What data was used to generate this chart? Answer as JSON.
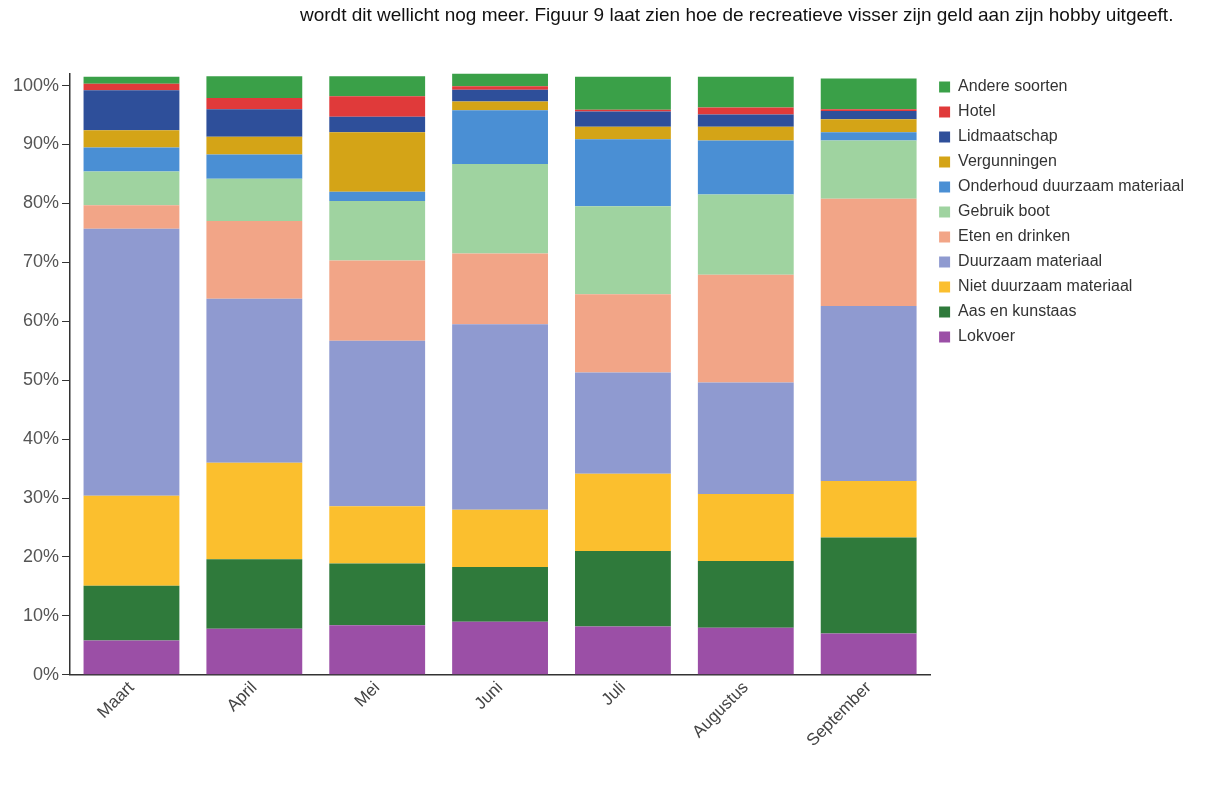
{
  "chart_data": {
    "type": "bar",
    "stacked": true,
    "categories": [
      "Maart",
      "April",
      "Mei",
      "Juni",
      "Juli",
      "Augustus",
      "September"
    ],
    "series": [
      {
        "name": "Lokvoer",
        "color": "#9b4fa6",
        "values": [
          5.8,
          7.8,
          8.4,
          9.0,
          8.2,
          8.0,
          7.0
        ]
      },
      {
        "name": "Aas en kunstaas",
        "color": "#2f7a3b",
        "values": [
          9.3,
          11.8,
          10.5,
          9.3,
          12.8,
          11.3,
          16.3
        ]
      },
      {
        "name": "Niet duurzaam materiaal",
        "color": "#fbbf2e",
        "values": [
          15.3,
          16.4,
          9.7,
          9.7,
          13.1,
          11.4,
          9.6
        ]
      },
      {
        "name": "Duurzaam materiaal",
        "color": "#8f9ad0",
        "values": [
          45.3,
          27.8,
          28.1,
          31.5,
          17.2,
          18.9,
          29.7
        ]
      },
      {
        "name": "Eten en drinken",
        "color": "#f2a587",
        "values": [
          4.0,
          13.2,
          13.6,
          12.0,
          13.3,
          18.3,
          18.2
        ]
      },
      {
        "name": "Gebruik boot",
        "color": "#9fd3a0",
        "values": [
          5.7,
          7.2,
          10.1,
          15.2,
          14.9,
          13.6,
          9.9
        ]
      },
      {
        "name": "Onderhoud duurzaam materiaal",
        "color": "#4a8fd4",
        "values": [
          4.1,
          4.1,
          1.6,
          9.1,
          11.4,
          9.2,
          1.4
        ]
      },
      {
        "name": "Vergunningen",
        "color": "#d4a417",
        "values": [
          2.9,
          3.0,
          10.1,
          1.5,
          2.1,
          2.3,
          2.2
        ]
      },
      {
        "name": "Lidmaatschap",
        "color": "#2e4f9a",
        "values": [
          6.8,
          4.7,
          2.6,
          2.0,
          2.6,
          2.1,
          1.4
        ]
      },
      {
        "name": "Hotel",
        "color": "#e03a3a",
        "values": [
          1.1,
          1.9,
          3.5,
          0.6,
          0.3,
          1.2,
          0.3
        ]
      },
      {
        "name": "Andere soorten",
        "color": "#3aa048",
        "values": [
          1.2,
          3.7,
          3.4,
          2.3,
          5.6,
          5.2,
          5.2
        ]
      }
    ],
    "ylim": [
      0,
      102
    ],
    "yticks": [
      {
        "value": 0,
        "label": "0%"
      },
      {
        "value": 10,
        "label": "10%"
      },
      {
        "value": 20,
        "label": "20%"
      },
      {
        "value": 30,
        "label": "30%"
      },
      {
        "value": 40,
        "label": "40%"
      },
      {
        "value": 50,
        "label": "50%"
      },
      {
        "value": 60,
        "label": "60%"
      },
      {
        "value": 70,
        "label": "70%"
      },
      {
        "value": 80,
        "label": "80%"
      },
      {
        "value": 90,
        "label": "90%"
      },
      {
        "value": 100,
        "label": "100%"
      }
    ],
    "grid": false,
    "legend": "right",
    "annotations": [
      "wordt dit wellicht nog meer. Figuur 9 laat zien hoe de recreatieve visser zijn geld aan zijn hobby uitgeeft."
    ]
  }
}
